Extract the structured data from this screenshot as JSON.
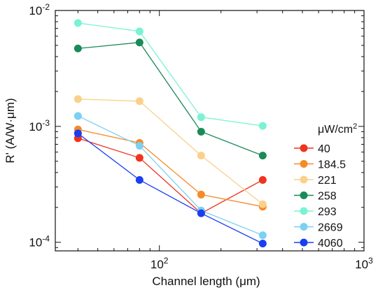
{
  "chart_data": {
    "type": "line",
    "xlabel": "Channel length (μm)",
    "ylabel": "R' (A/W·μm)",
    "x_scale": "log",
    "y_scale": "log",
    "xlim": [
      31,
      1000
    ],
    "ylim": [
      8.43e-05,
      0.01
    ],
    "x_ticks": [
      {
        "value": 100,
        "base": "10",
        "exp": "2"
      },
      {
        "value": 1000,
        "base": "10",
        "exp": "3"
      }
    ],
    "y_ticks": [
      {
        "value": 0.0001,
        "base": "10",
        "exp": "-4"
      },
      {
        "value": 0.001,
        "base": "10",
        "exp": "-3"
      },
      {
        "value": 0.01,
        "base": "10",
        "exp": "-2"
      }
    ],
    "grid": false,
    "legend_title": {
      "base": "μW/cm",
      "sup": "2"
    },
    "legend_position": "right",
    "x": [
      40,
      80,
      160,
      320
    ],
    "series": [
      {
        "name": "40",
        "color": "#f0331e",
        "values": [
          0.00079,
          0.000535,
          0.000178,
          0.000345
        ]
      },
      {
        "name": "184.5",
        "color": "#f58a28",
        "values": [
          0.00094,
          0.00072,
          0.000258,
          0.000203
        ]
      },
      {
        "name": "221",
        "color": "#fbd08a",
        "values": [
          0.00172,
          0.00165,
          0.00056,
          0.000213
        ]
      },
      {
        "name": "258",
        "color": "#1a8a58",
        "values": [
          0.0047,
          0.0053,
          0.0009,
          0.00056
        ]
      },
      {
        "name": "293",
        "color": "#7af2d4",
        "values": [
          0.0078,
          0.0066,
          0.0012,
          0.00101
        ]
      },
      {
        "name": "2669",
        "color": "#7cd0f2",
        "values": [
          0.00123,
          0.00068,
          0.000188,
          0.000115
        ]
      },
      {
        "name": "4060",
        "color": "#1a3ff2",
        "values": [
          0.00087,
          0.000345,
          0.000178,
          9.75e-05
        ]
      }
    ]
  }
}
